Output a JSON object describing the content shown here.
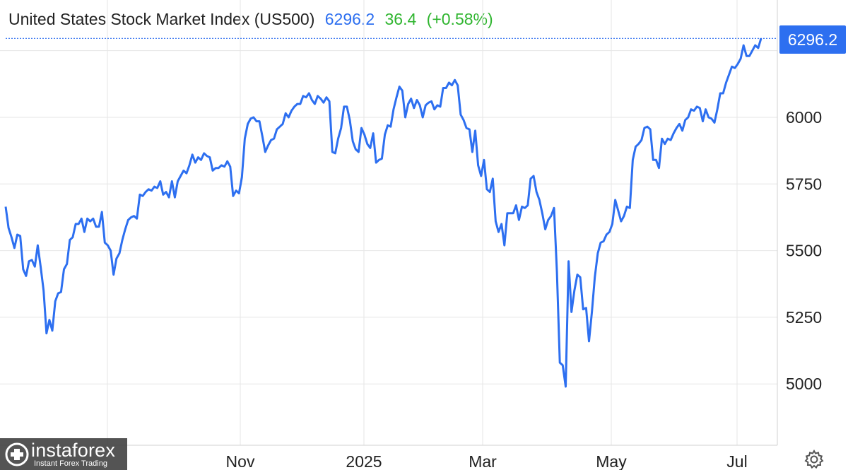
{
  "header": {
    "title": "United States Stock Market Index (US500)",
    "price": "6296.2",
    "change": "36.4",
    "change_pct": "(+0.58%)"
  },
  "last_value_label": "6296.2",
  "logo": {
    "name": "instaforex",
    "tagline": "Instant Forex Trading"
  },
  "settings_icon": "gear-icon",
  "colors": {
    "line": "#2d6ff0",
    "change_positive": "#2fb52f",
    "grid": "#e6e6e6",
    "badge": "#2d6ff0"
  },
  "chart_data": {
    "type": "line",
    "title": "United States Stock Market Index (US500)",
    "xlabel": "",
    "ylabel": "",
    "ylim": [
      4770,
      6440
    ],
    "x_ticks": [
      "Nov",
      "2025",
      "Mar",
      "May",
      "Jul"
    ],
    "y_ticks": [
      5000,
      5250,
      5500,
      5750,
      6000
    ],
    "grid": true,
    "legend": "none",
    "series": [
      {
        "values": [
          5665,
          5585,
          5550,
          5510,
          5560,
          5555,
          5430,
          5405,
          5460,
          5465,
          5440,
          5520,
          5440,
          5350,
          5190,
          5240,
          5200,
          5310,
          5340,
          5345,
          5430,
          5450,
          5540,
          5550,
          5600,
          5600,
          5620,
          5570,
          5620,
          5610,
          5620,
          5590,
          5590,
          5645,
          5530,
          5520,
          5500,
          5410,
          5470,
          5490,
          5540,
          5580,
          5615,
          5625,
          5630,
          5620,
          5710,
          5705,
          5720,
          5730,
          5725,
          5740,
          5735,
          5760,
          5710,
          5720,
          5700,
          5760,
          5700,
          5760,
          5780,
          5800,
          5790,
          5820,
          5860,
          5830,
          5850,
          5840,
          5865,
          5855,
          5850,
          5800,
          5810,
          5810,
          5820,
          5815,
          5835,
          5815,
          5705,
          5725,
          5715,
          5775,
          5920,
          5975,
          5995,
          6000,
          5985,
          5985,
          5930,
          5870,
          5895,
          5915,
          5920,
          5955,
          5965,
          5975,
          6015,
          6000,
          6025,
          6040,
          6050,
          6050,
          6080,
          6075,
          6090,
          6065,
          6050,
          6080,
          6070,
          6055,
          6075,
          6060,
          5870,
          5865,
          5920,
          5960,
          6040,
          6040,
          5990,
          5910,
          5880,
          5870,
          5960,
          5935,
          5900,
          5885,
          5940,
          5830,
          5840,
          5845,
          5935,
          5970,
          5965,
          6030,
          6075,
          6115,
          6100,
          6000,
          6050,
          6070,
          6035,
          6065,
          6045,
          6000,
          6045,
          6055,
          6060,
          6030,
          6045,
          6040,
          6110,
          6110,
          6130,
          6120,
          6140,
          6120,
          6010,
          5990,
          5960,
          5955,
          5870,
          5950,
          5820,
          5780,
          5840,
          5730,
          5720,
          5770,
          5610,
          5570,
          5600,
          5520,
          5640,
          5640,
          5640,
          5670,
          5615,
          5665,
          5660,
          5670,
          5770,
          5780,
          5720,
          5690,
          5640,
          5580,
          5615,
          5630,
          5660,
          5420,
          5080,
          5070,
          4990,
          5460,
          5270,
          5350,
          5410,
          5400,
          5280,
          5285,
          5160,
          5270,
          5400,
          5490,
          5530,
          5535,
          5560,
          5570,
          5600,
          5690,
          5650,
          5610,
          5630,
          5665,
          5660,
          5840,
          5890,
          5900,
          5915,
          5960,
          5965,
          5955,
          5840,
          5840,
          5810,
          5920,
          5900,
          5920,
          5915,
          5940,
          5960,
          5975,
          5950,
          5990,
          6000,
          6030,
          6025,
          6040,
          6035,
          5985,
          6030,
          6000,
          5995,
          5980,
          6030,
          6090,
          6090,
          6130,
          6160,
          6190,
          6185,
          6200,
          6220,
          6270,
          6230,
          6230,
          6250,
          6270,
          6260,
          6296
        ]
      }
    ]
  }
}
